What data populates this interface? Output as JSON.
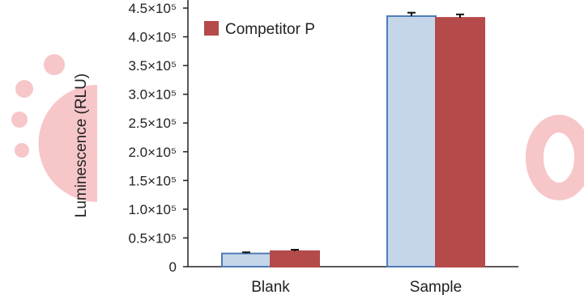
{
  "chart_data": {
    "type": "bar",
    "title": "",
    "xlabel": "",
    "ylabel": "Luminescence (RLU)",
    "ylim": [
      0,
      450000
    ],
    "yticks": [
      0,
      50000,
      100000,
      150000,
      200000,
      250000,
      300000,
      350000,
      400000,
      450000
    ],
    "ytick_labels": [
      "0",
      "0.5×10⁵",
      "1.0×10⁵",
      "1.5×10⁵",
      "2.0×10⁵",
      "2.5×10⁵",
      "3.0×10⁵",
      "3.5×10⁵",
      "4.0×10⁵",
      "4.5×10⁵"
    ],
    "categories": [
      "Blank",
      "Sample"
    ],
    "series": [
      {
        "name": "",
        "color": "#c5d6ea",
        "edge_color": "#4e7cb5",
        "values": [
          23000,
          436000
        ],
        "errors": [
          2000,
          6000
        ]
      },
      {
        "name": "Competitor P",
        "color": "#b54a4a",
        "edge_color": "#b54a4a",
        "values": [
          27000,
          433000
        ],
        "errors": [
          2500,
          6000
        ]
      }
    ],
    "legend": {
      "placement": "top-left"
    },
    "grid": false
  }
}
